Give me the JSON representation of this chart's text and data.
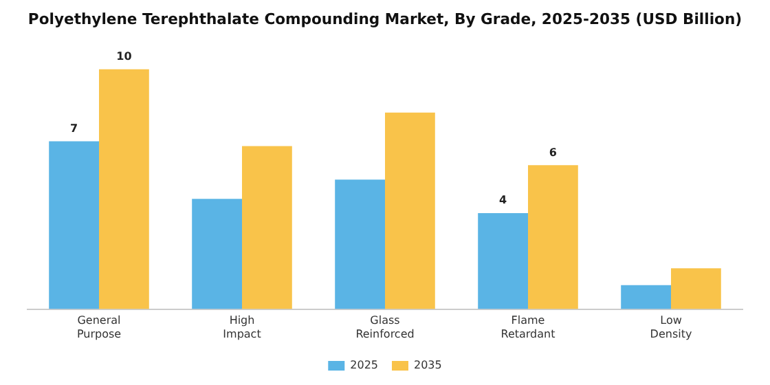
{
  "chart_data": {
    "type": "bar",
    "title": "Polyethylene Terephthalate Compounding Market, By Grade, 2025-2035 (USD Billion)",
    "categories": [
      "General Purpose",
      "High Impact",
      "Glass Reinforced",
      "Flame Retardant",
      "Low Density"
    ],
    "series": [
      {
        "name": "2025",
        "color": "#5ab4e5",
        "values": [
          7,
          4.6,
          5.4,
          4,
          1.0
        ],
        "value_labels": [
          "7",
          null,
          null,
          "4",
          null
        ]
      },
      {
        "name": "2035",
        "color": "#f9c34a",
        "values": [
          10,
          6.8,
          8.2,
          6,
          1.7
        ],
        "value_labels": [
          "10",
          null,
          null,
          "6",
          null
        ]
      }
    ],
    "legend": "bottom",
    "grid": false
  }
}
